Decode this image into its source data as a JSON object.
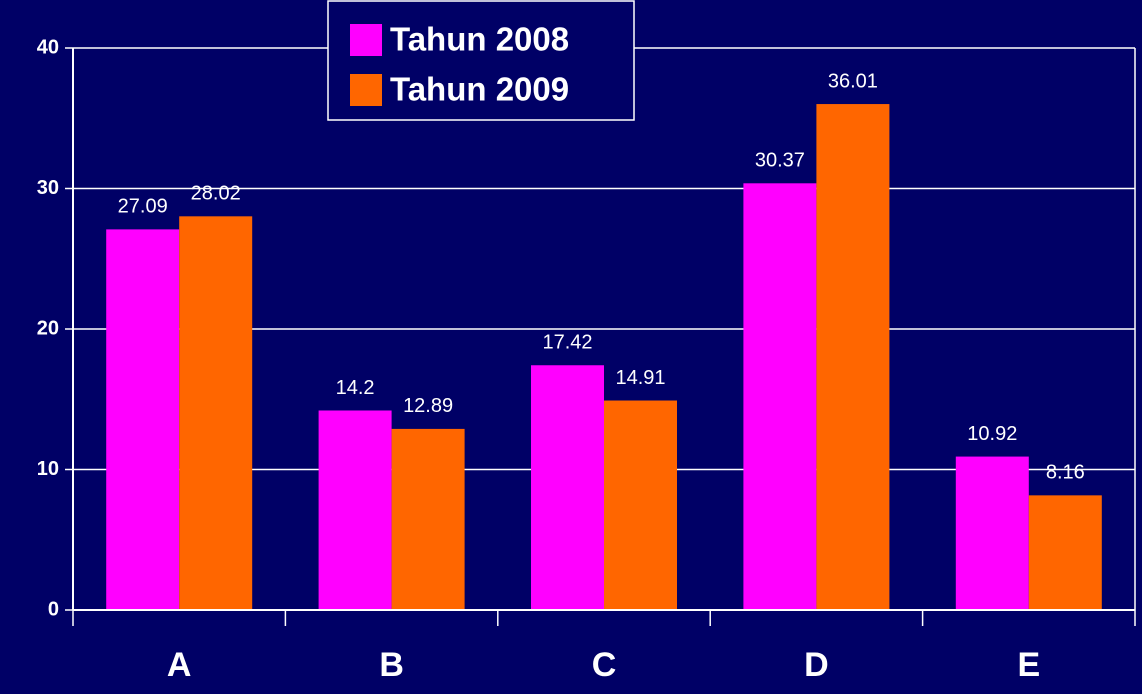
{
  "chart_data": {
    "type": "bar",
    "categories": [
      "A",
      "B",
      "C",
      "D",
      "E"
    ],
    "series": [
      {
        "name": "Tahun 2008",
        "color": "#ff00ff",
        "values": [
          27.09,
          14.2,
          17.42,
          30.37,
          10.92
        ]
      },
      {
        "name": "Tahun 2009",
        "color": "#ff6600",
        "values": [
          28.02,
          12.89,
          14.91,
          36.01,
          8.16
        ]
      }
    ],
    "ylim": [
      0,
      40
    ],
    "yticks": [
      0,
      10,
      20,
      30,
      40
    ],
    "grid": true,
    "legend": "top"
  }
}
